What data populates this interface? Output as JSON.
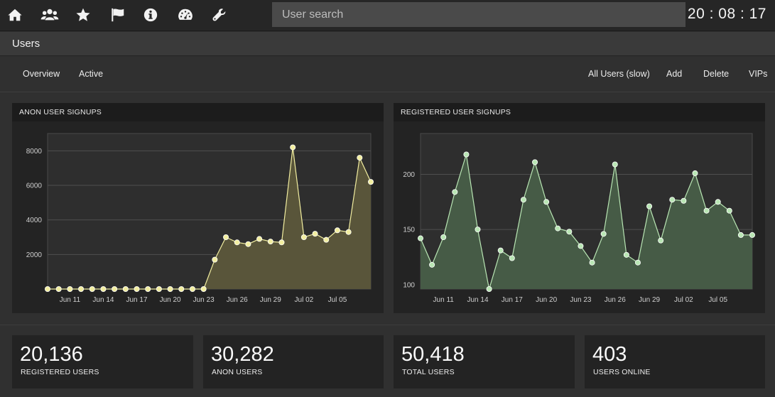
{
  "nav": {
    "icons": [
      "home-icon",
      "users-icon",
      "star-icon",
      "flag-icon",
      "info-icon",
      "dashboard-icon",
      "wrench-icon"
    ]
  },
  "search": {
    "placeholder": "User search",
    "value": ""
  },
  "clock": "20 : 08 : 17",
  "page": {
    "title": "Users"
  },
  "subnav": {
    "left": [
      "Overview",
      "Active"
    ],
    "right": [
      "All Users (slow)",
      "Add",
      "Delete",
      "VIPs"
    ]
  },
  "panels": {
    "anon": {
      "title": "ANON USER SIGNUPS"
    },
    "registered": {
      "title": "REGISTERED USER SIGNUPS"
    }
  },
  "chart_data": [
    {
      "type": "area",
      "title": "ANON USER SIGNUPS",
      "x": [
        "Jun 09",
        "Jun 10",
        "Jun 11",
        "Jun 12",
        "Jun 13",
        "Jun 14",
        "Jun 15",
        "Jun 16",
        "Jun 17",
        "Jun 18",
        "Jun 19",
        "Jun 20",
        "Jun 21",
        "Jun 22",
        "Jun 23",
        "Jun 24",
        "Jun 25",
        "Jun 26",
        "Jun 27",
        "Jun 28",
        "Jun 29",
        "Jun 30",
        "Jul 01",
        "Jul 02",
        "Jul 03",
        "Jul 04",
        "Jul 05",
        "Jul 06",
        "Jul 07",
        "Jul 08"
      ],
      "values": [
        0,
        0,
        0,
        0,
        0,
        0,
        0,
        0,
        0,
        0,
        0,
        0,
        0,
        0,
        0,
        1700,
        3000,
        2700,
        2600,
        2900,
        2750,
        2700,
        8200,
        3000,
        3200,
        2850,
        3400,
        3300,
        7600,
        6200
      ],
      "xticks": [
        "Jun 11",
        "Jun 14",
        "Jun 17",
        "Jun 20",
        "Jun 23",
        "Jun 26",
        "Jun 29",
        "Jul 02",
        "Jul 05"
      ],
      "yticks": [
        2000,
        4000,
        6000,
        8000
      ],
      "ylim": [
        0,
        9000
      ],
      "grid": true,
      "color": "#f2eea0",
      "fill": "#59553a"
    },
    {
      "type": "area",
      "title": "REGISTERED USER SIGNUPS",
      "x": [
        "Jun 09",
        "Jun 10",
        "Jun 11",
        "Jun 12",
        "Jun 13",
        "Jun 14",
        "Jun 15",
        "Jun 16",
        "Jun 17",
        "Jun 18",
        "Jun 19",
        "Jun 20",
        "Jun 21",
        "Jun 22",
        "Jun 23",
        "Jun 24",
        "Jun 25",
        "Jun 26",
        "Jun 27",
        "Jun 28",
        "Jun 29",
        "Jun 30",
        "Jul 01",
        "Jul 02",
        "Jul 03",
        "Jul 04",
        "Jul 05",
        "Jul 06",
        "Jul 07",
        "Jul 08"
      ],
      "values": [
        142,
        118,
        143,
        184,
        218,
        150,
        96,
        131,
        124,
        177,
        211,
        175,
        151,
        148,
        135,
        120,
        146,
        209,
        127,
        120,
        171,
        140,
        177,
        176,
        201,
        167,
        175,
        167,
        145,
        145
      ],
      "xticks": [
        "Jun 11",
        "Jun 14",
        "Jun 17",
        "Jun 20",
        "Jun 23",
        "Jun 26",
        "Jun 29",
        "Jul 02",
        "Jul 05"
      ],
      "yticks": [
        100,
        150,
        200
      ],
      "ylim": [
        96,
        237
      ],
      "grid": true,
      "color": "#b9e6b4",
      "fill": "#465b46"
    }
  ],
  "stats": [
    {
      "value": "20,136",
      "label": "REGISTERED USERS"
    },
    {
      "value": "30,282",
      "label": "ANON USERS"
    },
    {
      "value": "50,418",
      "label": "TOTAL USERS"
    },
    {
      "value": "403",
      "label": "USERS ONLINE"
    }
  ]
}
